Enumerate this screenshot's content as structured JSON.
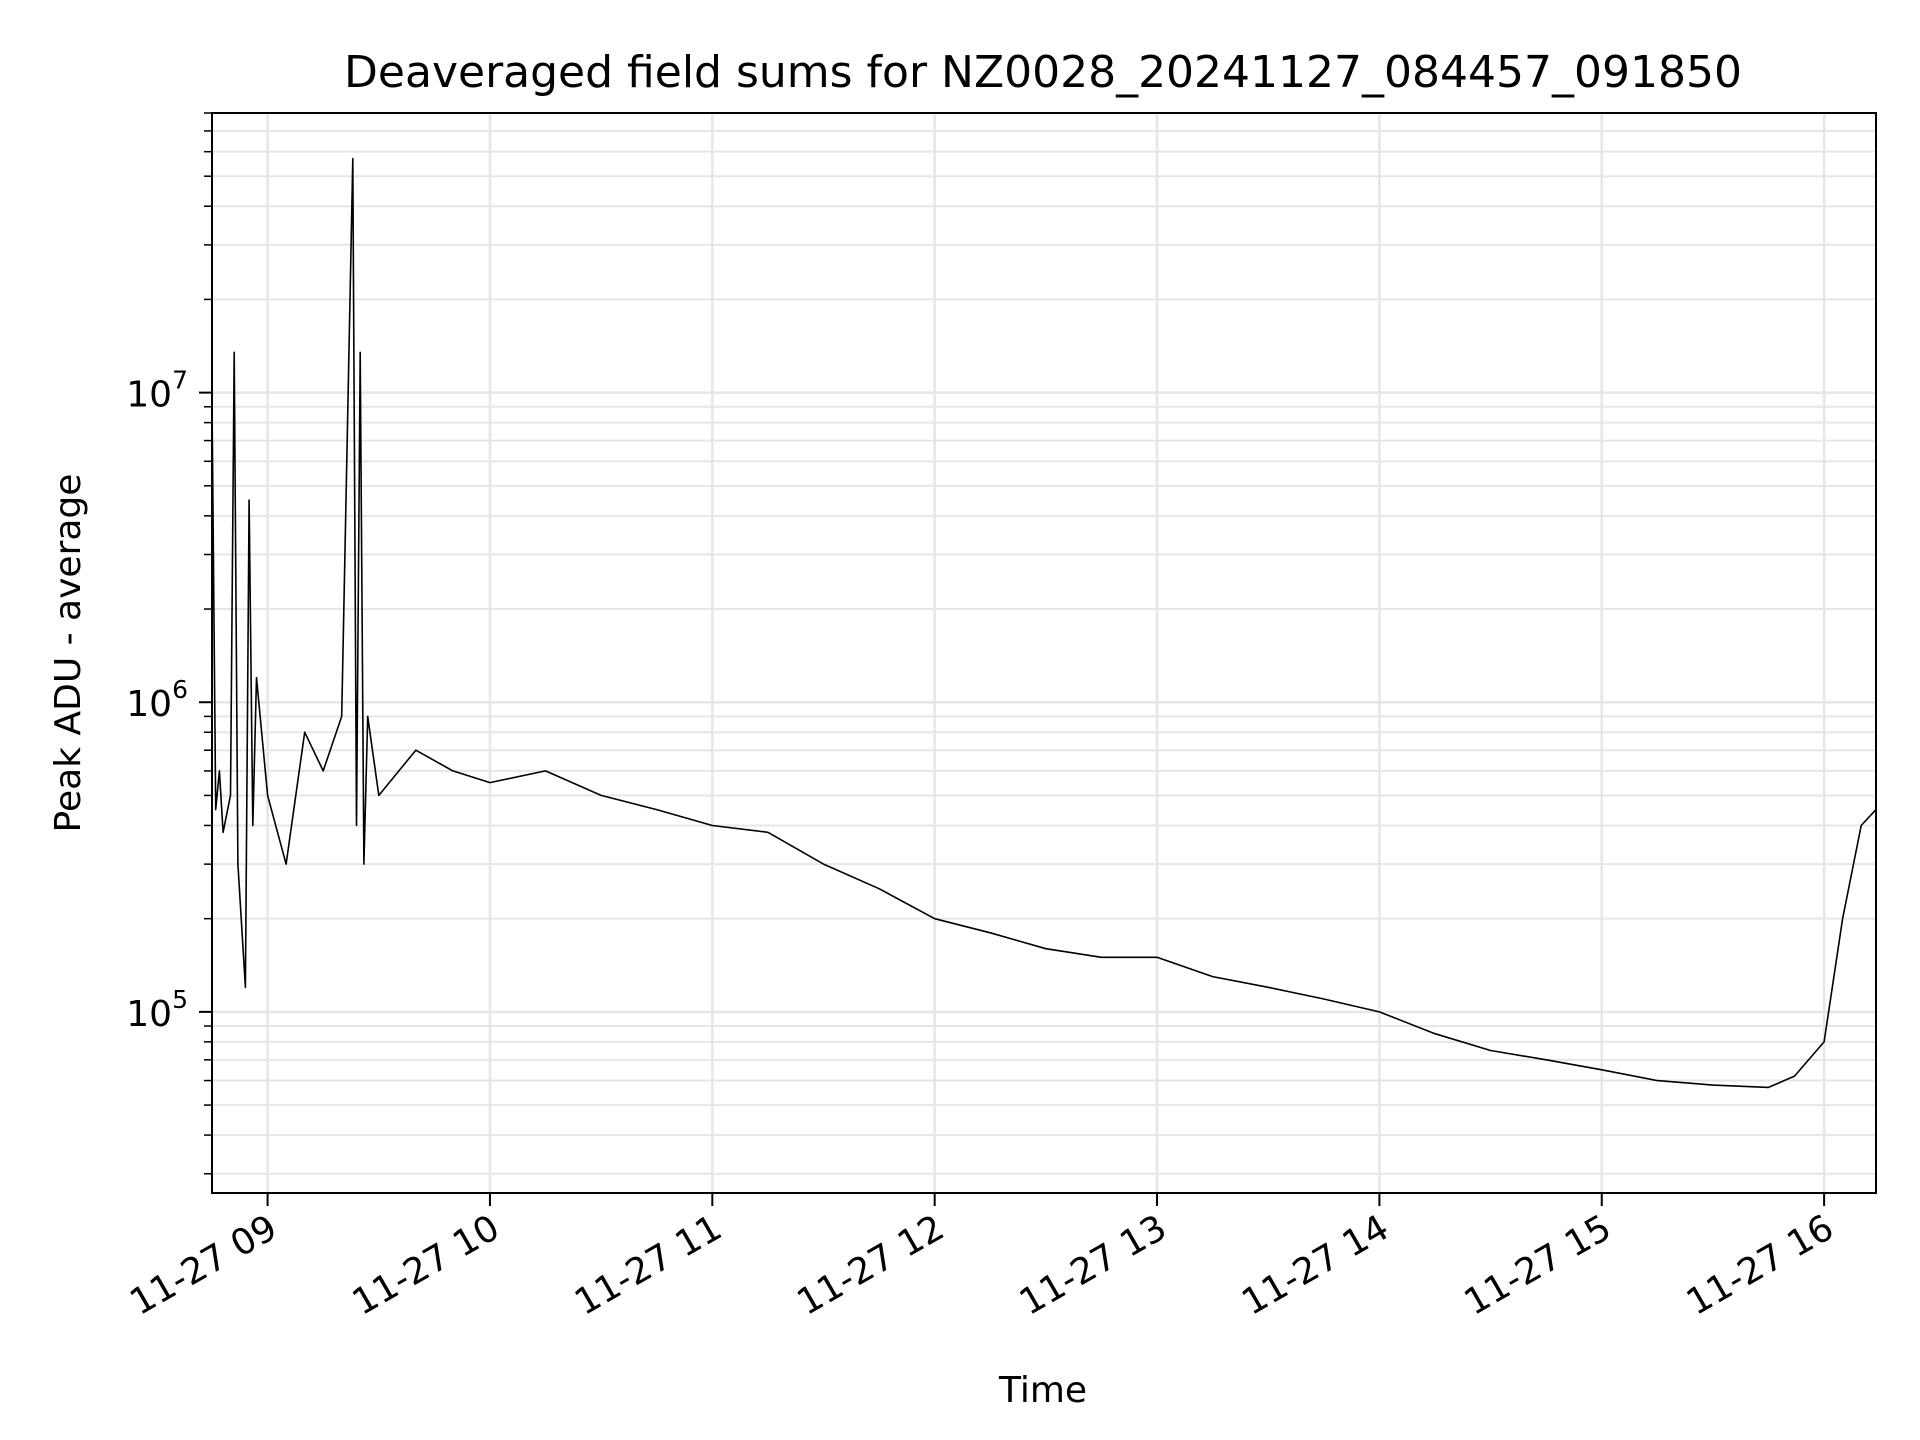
{
  "chart_data": {
    "type": "line",
    "title": "Deaveraged field sums for NZ0028_20241127_084457_091850",
    "xlabel": "Time",
    "ylabel": "Peak ADU - average",
    "yscale": "log",
    "ylim": [
      26000,
      80000000
    ],
    "xlim": [
      "2024-11-27 08:45",
      "2024-11-27 16:14"
    ],
    "grid": true,
    "line_color": "#000000",
    "x_ticks": [
      {
        "value": "2024-11-27 09:00",
        "label": "11-27 09"
      },
      {
        "value": "2024-11-27 10:00",
        "label": "11-27 10"
      },
      {
        "value": "2024-11-27 11:00",
        "label": "11-27 11"
      },
      {
        "value": "2024-11-27 12:00",
        "label": "11-27 12"
      },
      {
        "value": "2024-11-27 13:00",
        "label": "11-27 13"
      },
      {
        "value": "2024-11-27 14:00",
        "label": "11-27 14"
      },
      {
        "value": "2024-11-27 15:00",
        "label": "11-27 15"
      },
      {
        "value": "2024-11-27 16:00",
        "label": "11-27 16"
      }
    ],
    "y_ticks": [
      {
        "value": 100000,
        "base": "10",
        "exp": "5"
      },
      {
        "value": 1000000,
        "base": "10",
        "exp": "6"
      },
      {
        "value": 10000000,
        "base": "10",
        "exp": "7"
      }
    ],
    "series": [
      {
        "x": [
          "2024-11-27 08:45",
          "2024-11-27 08:46",
          "2024-11-27 08:47",
          "2024-11-27 08:48",
          "2024-11-27 08:50",
          "2024-11-27 08:51",
          "2024-11-27 08:52",
          "2024-11-27 08:54",
          "2024-11-27 08:55",
          "2024-11-27 08:56",
          "2024-11-27 08:57",
          "2024-11-27 09:00",
          "2024-11-27 09:05",
          "2024-11-27 09:10",
          "2024-11-27 09:15",
          "2024-11-27 09:20",
          "2024-11-27 09:23",
          "2024-11-27 09:24",
          "2024-11-27 09:25",
          "2024-11-27 09:26",
          "2024-11-27 09:27",
          "2024-11-27 09:30",
          "2024-11-27 09:40",
          "2024-11-27 09:50",
          "2024-11-27 10:00",
          "2024-11-27 10:15",
          "2024-11-27 10:30",
          "2024-11-27 10:45",
          "2024-11-27 11:00",
          "2024-11-27 11:15",
          "2024-11-27 11:30",
          "2024-11-27 11:45",
          "2024-11-27 12:00",
          "2024-11-27 12:15",
          "2024-11-27 12:30",
          "2024-11-27 12:45",
          "2024-11-27 13:00",
          "2024-11-27 13:15",
          "2024-11-27 13:30",
          "2024-11-27 13:45",
          "2024-11-27 14:00",
          "2024-11-27 14:15",
          "2024-11-27 14:30",
          "2024-11-27 14:45",
          "2024-11-27 15:00",
          "2024-11-27 15:15",
          "2024-11-27 15:30",
          "2024-11-27 15:45",
          "2024-11-27 15:52",
          "2024-11-27 16:00",
          "2024-11-27 16:05",
          "2024-11-27 16:10",
          "2024-11-27 16:14"
        ],
        "values": [
          9500000,
          450000,
          600000,
          380000,
          500000,
          13500000,
          300000,
          120000,
          4500000,
          400000,
          1200000,
          500000,
          300000,
          800000,
          600000,
          900000,
          57000000,
          400000,
          13500000,
          300000,
          900000,
          500000,
          700000,
          600000,
          550000,
          600000,
          500000,
          450000,
          400000,
          380000,
          300000,
          250000,
          200000,
          180000,
          160000,
          150000,
          150000,
          130000,
          120000,
          110000,
          100000,
          85000,
          75000,
          70000,
          65000,
          60000,
          58000,
          57000,
          62000,
          80000,
          200000,
          400000,
          450000
        ]
      }
    ]
  }
}
